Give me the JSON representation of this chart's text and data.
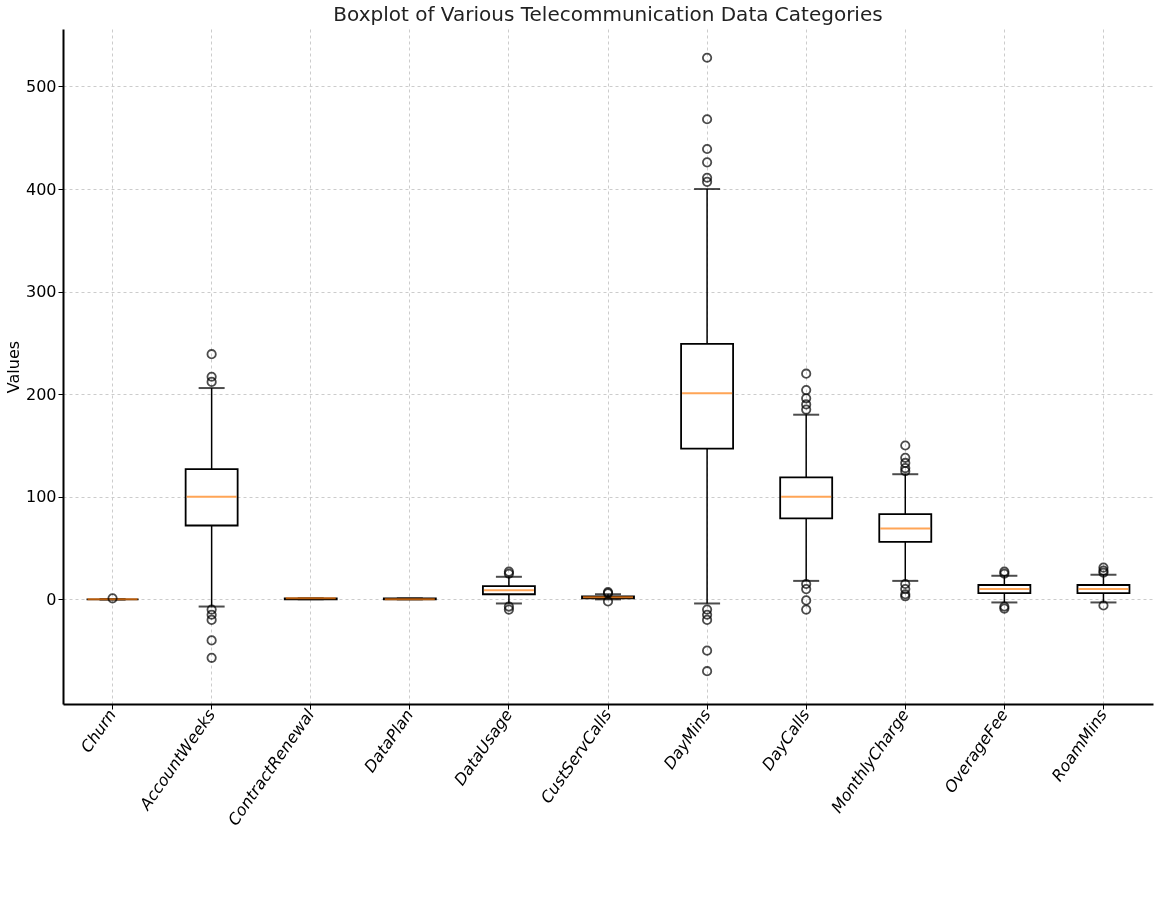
{
  "chart_data": {
    "type": "box",
    "title": "Boxplot of Various Telecommunication Data Categories",
    "ylabel": "Values",
    "categories": [
      "Churn",
      "AccountWeeks",
      "ContractRenewal",
      "DataPlan",
      "DataUsage",
      "CustServCalls",
      "DayMins",
      "DayCalls",
      "MonthlyCharge",
      "OverageFee",
      "RoamMins"
    ],
    "boxes": [
      {
        "low": 0,
        "q1": 0,
        "median": 0,
        "q3": 0,
        "high": 0,
        "outliers": [
          1
        ]
      },
      {
        "low": -7,
        "q1": 72,
        "median": 100,
        "q3": 127,
        "high": 206,
        "outliers": [
          239,
          217,
          212,
          -10,
          -15,
          -20,
          -40,
          -57
        ]
      },
      {
        "low": 0,
        "q1": 0,
        "median": 1,
        "q3": 1,
        "high": 1
      },
      {
        "low": 0,
        "q1": 0,
        "median": 0,
        "q3": 1,
        "high": 1
      },
      {
        "low": -4,
        "q1": 5,
        "median": 9,
        "q3": 13,
        "high": 22,
        "outliers": [
          27,
          25,
          -7,
          -10
        ]
      },
      {
        "low": 0,
        "q1": 1,
        "median": 2,
        "q3": 3,
        "high": 5,
        "outliers": [
          6,
          7,
          -2
        ]
      },
      {
        "low": -4,
        "q1": 147,
        "median": 201,
        "q3": 249,
        "high": 400,
        "outliers": [
          528,
          468,
          439,
          426,
          411,
          407,
          -10,
          -15,
          -20,
          -50,
          -70
        ]
      },
      {
        "low": 18,
        "q1": 79,
        "median": 100,
        "q3": 119,
        "high": 180,
        "outliers": [
          220,
          204,
          196,
          190,
          185,
          15,
          10,
          -1,
          -10
        ]
      },
      {
        "low": 18,
        "q1": 56,
        "median": 69,
        "q3": 83,
        "high": 122,
        "outliers": [
          150,
          138,
          133,
          128,
          125,
          15,
          10,
          5,
          3
        ]
      },
      {
        "low": -3,
        "q1": 6,
        "median": 10,
        "q3": 14,
        "high": 23,
        "outliers": [
          27,
          25,
          -7,
          -9
        ]
      },
      {
        "low": -3,
        "q1": 6,
        "median": 10,
        "q3": 14,
        "high": 24,
        "outliers": [
          31,
          28,
          26,
          -6
        ]
      }
    ],
    "ylim": [
      -102,
      556
    ],
    "yticks": [
      0,
      100,
      200,
      300,
      400,
      500
    ],
    "grid": true
  }
}
